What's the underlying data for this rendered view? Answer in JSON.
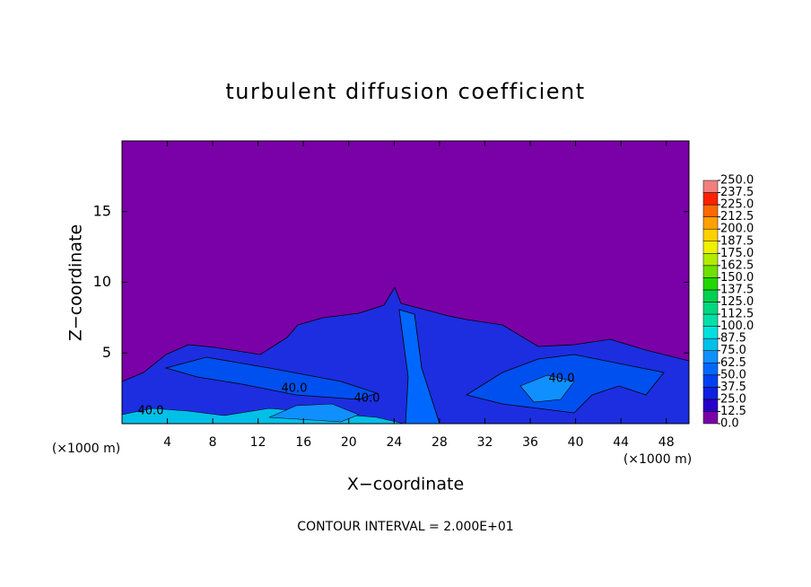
{
  "chart_data": {
    "type": "contour",
    "title": "turbulent diffusion coefficient",
    "x_label": "X−coordinate",
    "y_label": "Z−coordinate",
    "x_unit": "(×1000 m)",
    "footer": "CONTOUR INTERVAL = 2.000E+01",
    "background_color": "#7a00a8",
    "xlim": [
      0,
      50
    ],
    "ylim": [
      0,
      20
    ],
    "xticks": [
      4,
      8,
      12,
      16,
      20,
      24,
      28,
      32,
      36,
      40,
      44,
      48
    ],
    "yticks": [
      5,
      10,
      15
    ],
    "contour_labels": [
      "40.0",
      "40.0",
      "40.0",
      "40.0"
    ],
    "colorbar": {
      "ticks": [
        {
          "value": 0,
          "label": "0.0"
        },
        {
          "value": 12.5,
          "label": "12.5"
        },
        {
          "value": 25,
          "label": "25.0"
        },
        {
          "value": 37.5,
          "label": "37.5"
        },
        {
          "value": 50,
          "label": "50.0"
        },
        {
          "value": 62.5,
          "label": "62.5"
        },
        {
          "value": 75,
          "label": "75.0"
        },
        {
          "value": 87.5,
          "label": "87.5"
        },
        {
          "value": 100,
          "label": "100.0"
        },
        {
          "value": 112.5,
          "label": "112.5"
        },
        {
          "value": 125,
          "label": "125.0"
        },
        {
          "value": 137.5,
          "label": "137.5"
        },
        {
          "value": 150,
          "label": "150.0"
        },
        {
          "value": 162.5,
          "label": "162.5"
        },
        {
          "value": 175,
          "label": "175.0"
        },
        {
          "value": 187.5,
          "label": "187.5"
        },
        {
          "value": 200,
          "label": "200.0"
        },
        {
          "value": 212.5,
          "label": "212.5"
        },
        {
          "value": 225,
          "label": "225.0"
        },
        {
          "value": 237.5,
          "label": "237.5"
        },
        {
          "value": 250,
          "label": "250.0"
        }
      ],
      "colors": [
        "#7a00a8",
        "#2800c8",
        "#1020e0",
        "#0040f0",
        "#0068ff",
        "#1090ff",
        "#00c0e8",
        "#00e0e0",
        "#00e0a8",
        "#00d880",
        "#00d050",
        "#20d800",
        "#70e000",
        "#b0ec00",
        "#f0f000",
        "#ffd000",
        "#ffa000",
        "#ff6800",
        "#ff2000",
        "#f08080"
      ]
    }
  }
}
